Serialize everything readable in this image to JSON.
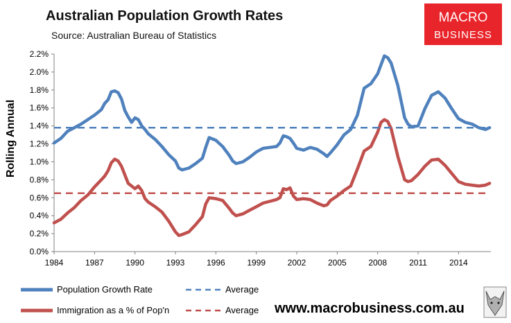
{
  "chart_data": {
    "type": "line",
    "title": "Australian Population Growth Rates",
    "subtitle": "Source: Australian Bureau of Statistics",
    "ylabel": "Rolling Annual",
    "xlabel": "",
    "xlim": [
      1984,
      2016.4
    ],
    "ylim": [
      0,
      2.2
    ],
    "yticks": [
      "0.0%",
      "0.2%",
      "0.4%",
      "0.6%",
      "0.8%",
      "1.0%",
      "1.2%",
      "1.4%",
      "1.6%",
      "1.8%",
      "2.0%",
      "2.2%"
    ],
    "xticks": [
      "1984",
      "1987",
      "1990",
      "1993",
      "1996",
      "1999",
      "2002",
      "2005",
      "2008",
      "2011",
      "2014"
    ],
    "series": [
      {
        "name": "Population Growth Rate",
        "color": "#4f81bd",
        "style": "solid",
        "x": [
          1984.0,
          1984.5,
          1985.0,
          1985.5,
          1986.0,
          1986.5,
          1987.0,
          1987.5,
          1987.75,
          1988.0,
          1988.25,
          1988.5,
          1988.75,
          1989.0,
          1989.25,
          1989.5,
          1989.75,
          1990.0,
          1990.25,
          1990.5,
          1990.75,
          1991.0,
          1991.5,
          1992.0,
          1992.5,
          1993.0,
          1993.25,
          1993.5,
          1994.0,
          1994.5,
          1995.0,
          1995.25,
          1995.5,
          1996.0,
          1996.5,
          1997.0,
          1997.25,
          1997.5,
          1998.0,
          1998.5,
          1999.0,
          1999.5,
          2000.0,
          2000.5,
          2000.75,
          2001.0,
          2001.25,
          2001.5,
          2001.75,
          2002.0,
          2002.5,
          2003.0,
          2003.5,
          2004.0,
          2004.25,
          2004.5,
          2005.0,
          2005.5,
          2006.0,
          2006.5,
          2007.0,
          2007.5,
          2008.0,
          2008.25,
          2008.5,
          2008.75,
          2009.0,
          2009.5,
          2010.0,
          2010.25,
          2010.5,
          2011.0,
          2011.5,
          2012.0,
          2012.5,
          2013.0,
          2013.5,
          2014.0,
          2014.5,
          2015.0,
          2015.5,
          2016.0,
          2016.3
        ],
        "y": [
          1.21,
          1.26,
          1.34,
          1.38,
          1.42,
          1.47,
          1.52,
          1.58,
          1.65,
          1.69,
          1.78,
          1.79,
          1.77,
          1.7,
          1.57,
          1.5,
          1.44,
          1.49,
          1.47,
          1.4,
          1.36,
          1.31,
          1.25,
          1.17,
          1.08,
          1.01,
          0.93,
          0.91,
          0.93,
          0.98,
          1.04,
          1.16,
          1.27,
          1.24,
          1.17,
          1.07,
          1.01,
          0.98,
          1.0,
          1.05,
          1.11,
          1.15,
          1.16,
          1.17,
          1.21,
          1.29,
          1.28,
          1.26,
          1.21,
          1.15,
          1.13,
          1.16,
          1.14,
          1.09,
          1.06,
          1.1,
          1.19,
          1.3,
          1.36,
          1.52,
          1.82,
          1.87,
          1.98,
          2.08,
          2.18,
          2.16,
          2.1,
          1.85,
          1.49,
          1.42,
          1.39,
          1.4,
          1.59,
          1.74,
          1.78,
          1.71,
          1.59,
          1.48,
          1.44,
          1.42,
          1.38,
          1.36,
          1.38
        ]
      },
      {
        "name": "Immigration as a % of Pop'n",
        "color": "#c0504d",
        "style": "solid",
        "x": [
          1984.0,
          1984.5,
          1985.0,
          1985.5,
          1986.0,
          1986.5,
          1987.0,
          1987.5,
          1987.75,
          1988.0,
          1988.25,
          1988.5,
          1988.75,
          1989.0,
          1989.5,
          1990.0,
          1990.25,
          1990.5,
          1990.75,
          1991.0,
          1991.5,
          1992.0,
          1992.5,
          1993.0,
          1993.25,
          1993.5,
          1994.0,
          1994.5,
          1995.0,
          1995.25,
          1995.5,
          1996.0,
          1996.5,
          1997.0,
          1997.25,
          1997.5,
          1998.0,
          1998.5,
          1999.0,
          1999.5,
          2000.0,
          2000.5,
          2000.75,
          2001.0,
          2001.25,
          2001.5,
          2001.75,
          2002.0,
          2002.5,
          2003.0,
          2003.5,
          2004.0,
          2004.25,
          2004.5,
          2005.0,
          2005.5,
          2006.0,
          2006.5,
          2007.0,
          2007.5,
          2008.0,
          2008.25,
          2008.5,
          2008.75,
          2009.0,
          2009.5,
          2010.0,
          2010.25,
          2010.5,
          2011.0,
          2011.5,
          2012.0,
          2012.5,
          2013.0,
          2013.5,
          2014.0,
          2014.5,
          2015.0,
          2015.5,
          2016.0,
          2016.3
        ],
        "y": [
          0.32,
          0.36,
          0.43,
          0.49,
          0.57,
          0.63,
          0.72,
          0.8,
          0.84,
          0.9,
          0.99,
          1.03,
          1.01,
          0.95,
          0.76,
          0.7,
          0.73,
          0.68,
          0.59,
          0.55,
          0.5,
          0.44,
          0.34,
          0.22,
          0.18,
          0.19,
          0.22,
          0.3,
          0.39,
          0.53,
          0.6,
          0.59,
          0.57,
          0.48,
          0.43,
          0.4,
          0.42,
          0.46,
          0.5,
          0.54,
          0.56,
          0.58,
          0.6,
          0.7,
          0.69,
          0.71,
          0.62,
          0.58,
          0.59,
          0.58,
          0.54,
          0.51,
          0.52,
          0.57,
          0.62,
          0.68,
          0.73,
          0.92,
          1.12,
          1.17,
          1.33,
          1.44,
          1.47,
          1.45,
          1.37,
          1.06,
          0.8,
          0.78,
          0.79,
          0.86,
          0.95,
          1.02,
          1.03,
          0.96,
          0.87,
          0.78,
          0.75,
          0.74,
          0.73,
          0.74,
          0.76
        ]
      },
      {
        "name": "Average",
        "color": "#4f81bd",
        "style": "dashed",
        "x": [
          1984.0,
          2016.3
        ],
        "y": [
          1.38,
          1.38
        ]
      },
      {
        "name": "Average",
        "color": "#c0504d",
        "style": "dashed",
        "x": [
          1984.0,
          2016.3
        ],
        "y": [
          0.65,
          0.65
        ]
      }
    ],
    "legend": [
      {
        "label": "Population Growth Rate",
        "color": "#4f81bd",
        "style": "solid"
      },
      {
        "label": "Average",
        "color": "#4f81bd",
        "style": "dashed"
      },
      {
        "label": "Immigration as a % of Pop'n",
        "color": "#c0504d",
        "style": "solid"
      },
      {
        "label": "Average",
        "color": "#c0504d",
        "style": "dashed"
      }
    ],
    "grid": false,
    "legend_position": "bottom"
  },
  "brand": {
    "logo_line1": "MACRO",
    "logo_line2": "BUSINESS",
    "logo_color": "#e8252b",
    "website": "www.macrobusiness.com.au"
  }
}
